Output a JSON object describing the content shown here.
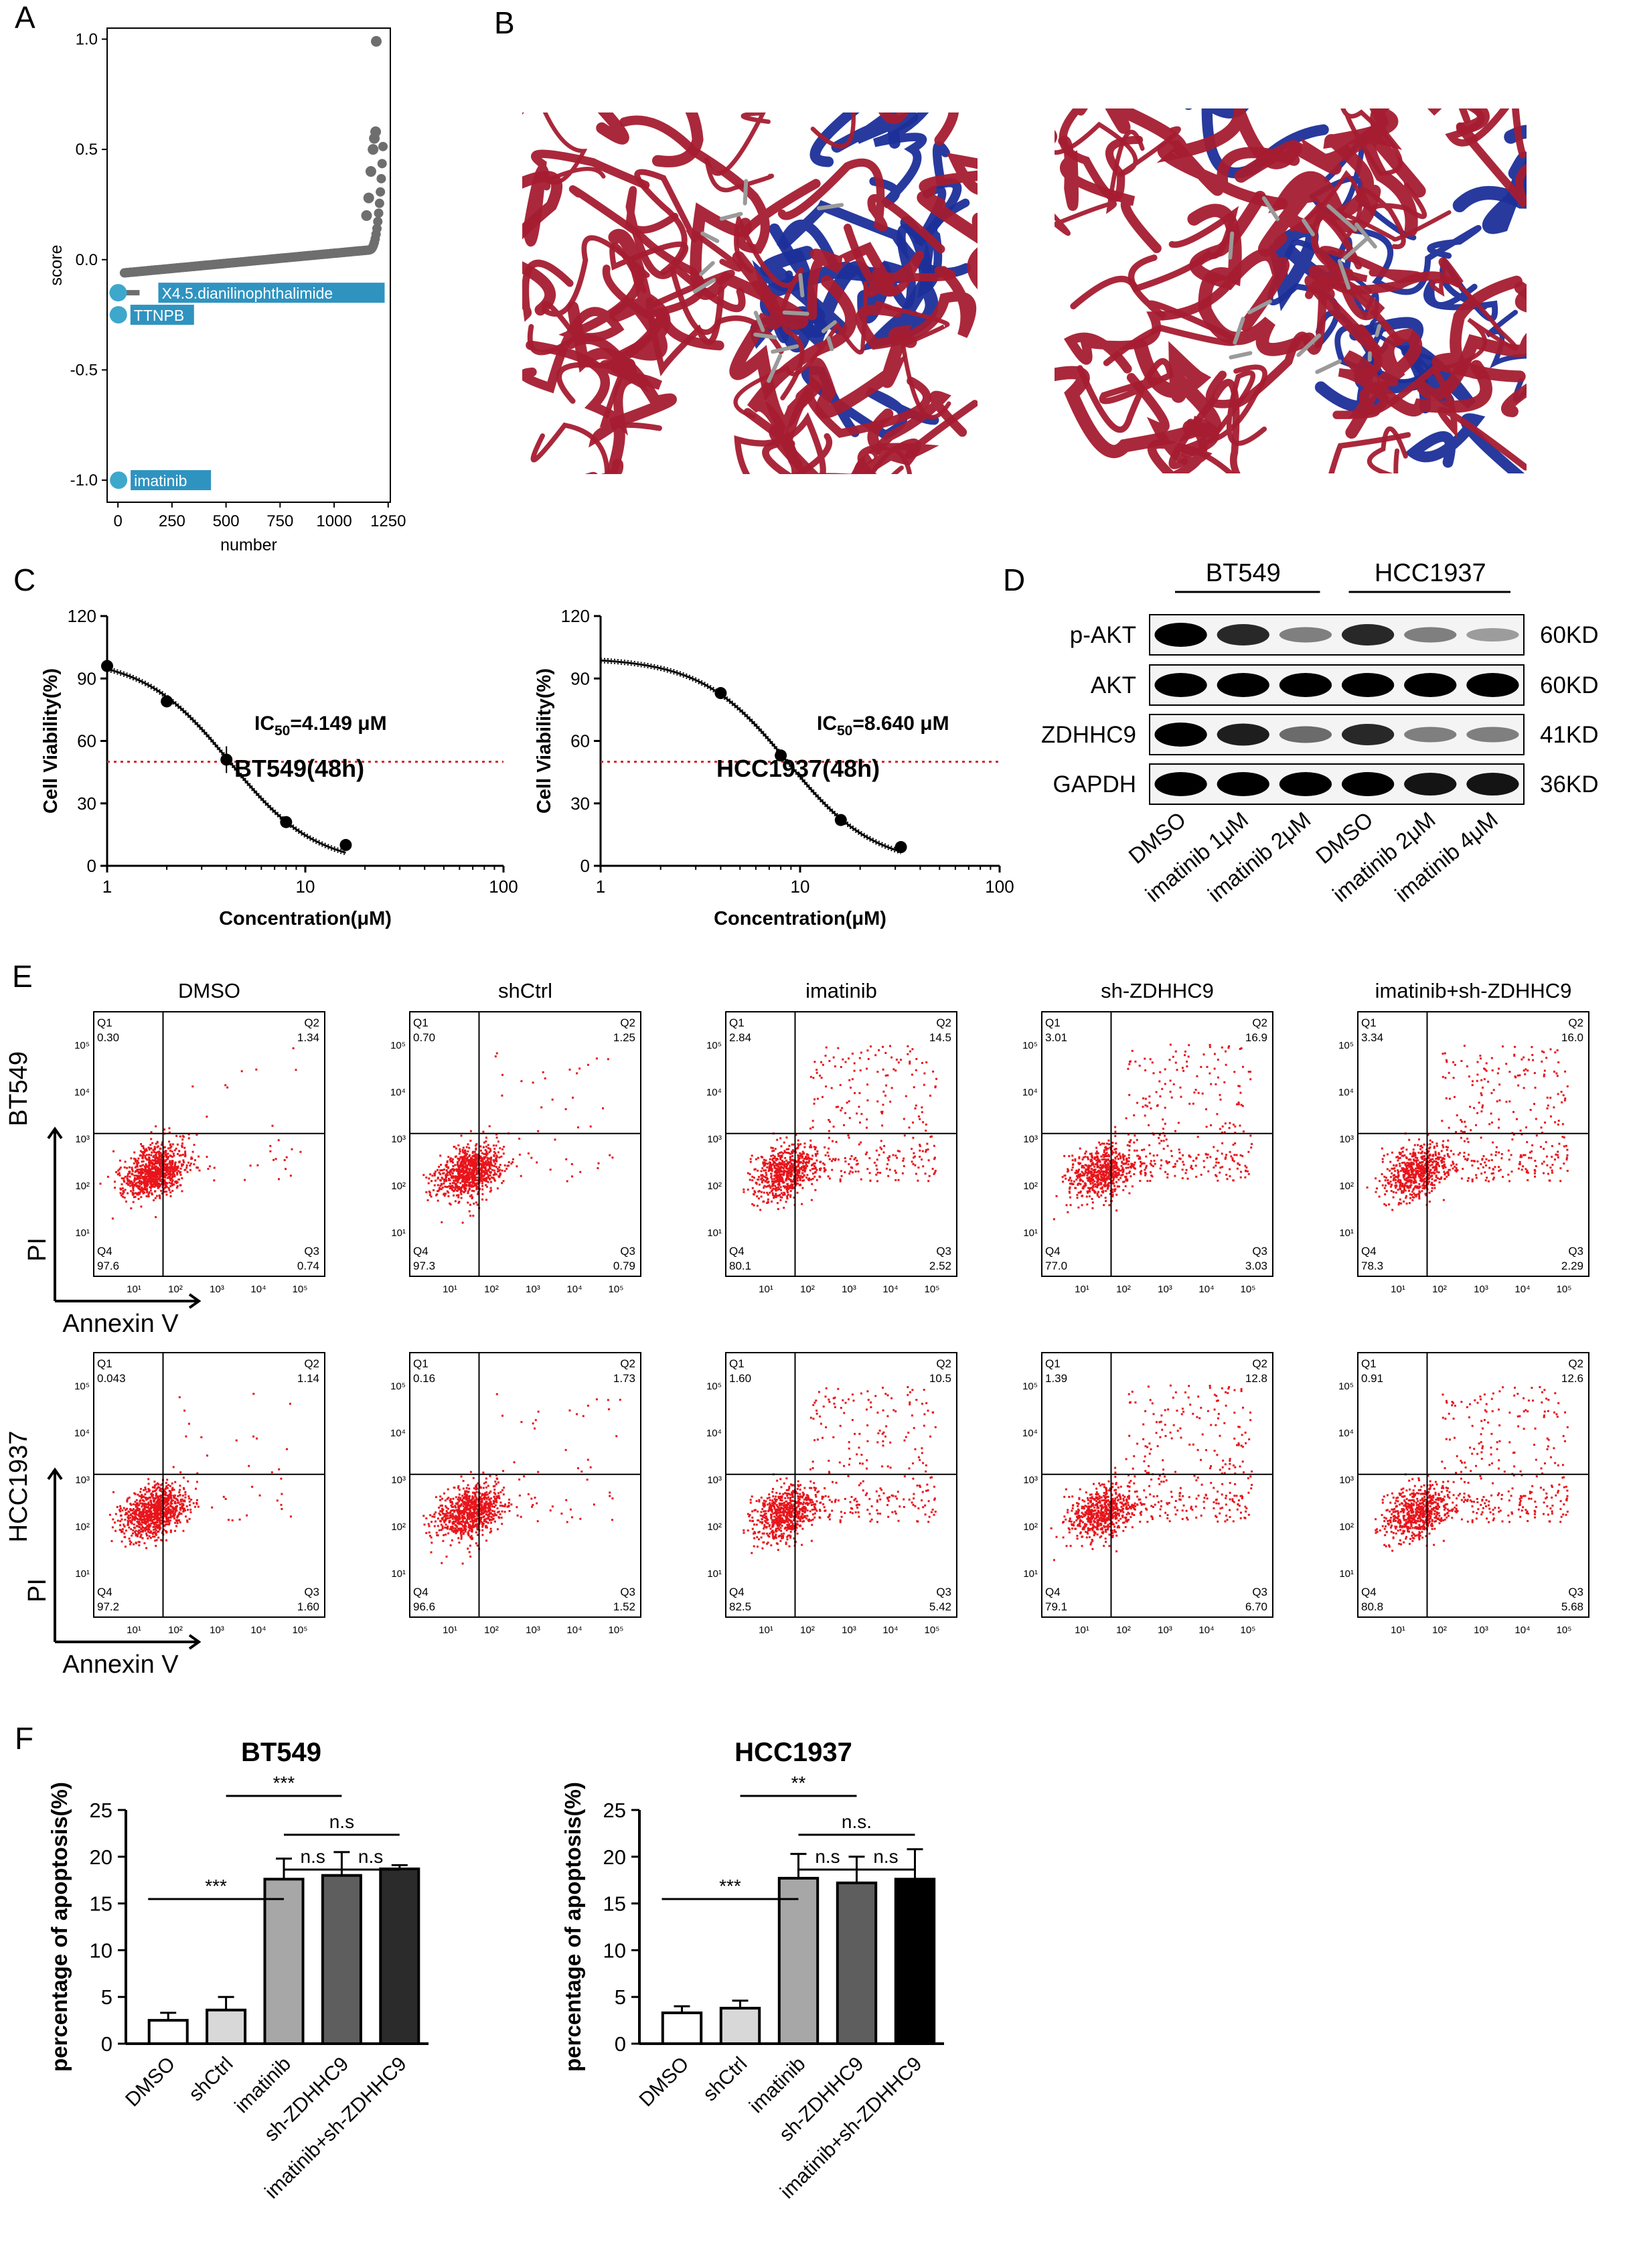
{
  "figure": {
    "panel_labels": [
      "A",
      "B",
      "C",
      "D",
      "E",
      "F"
    ]
  },
  "panel_a": {
    "chart_data": {
      "type": "scatter",
      "xlabel": "number",
      "ylabel": "score",
      "xticks": [
        "0",
        "250",
        "500",
        "750",
        "1000",
        "1250"
      ],
      "yticks": [
        "1.0",
        "0.5",
        "0.0",
        "-0.5",
        "-1.0"
      ],
      "xlim": [
        -50,
        1260
      ],
      "ylim": [
        -1.1,
        1.05
      ],
      "n_points": 1200,
      "highlights": [
        {
          "label": "X4.5.dianilinophthalimide",
          "x": 1,
          "y": -0.15
        },
        {
          "label": "TTNPB",
          "x": 2,
          "y": -0.25
        },
        {
          "label": "imatinib",
          "x": 3,
          "y": -1.0
        }
      ],
      "colors": {
        "points": "#6e6e6e",
        "highlight": "#3da8cc",
        "label_bg": "#2f93c0"
      }
    }
  },
  "panel_b": {
    "description_colors": {
      "helix": "#a51c30",
      "strand": "#1c2f99",
      "ligand": "#9a9a9a"
    }
  },
  "panel_c": {
    "chart_data": [
      {
        "type": "line",
        "title": "BT549(48h)",
        "ic50_label": "IC50=4.149 μM",
        "ic50": 4.149,
        "xlabel": "Concentration(μM)",
        "ylabel": "Cell Viability(%)",
        "x_scale": "log",
        "xlim": [
          1,
          100
        ],
        "ylim": [
          0,
          120
        ],
        "xticks": [
          "1",
          "10",
          "100"
        ],
        "yticks": [
          "0",
          "30",
          "60",
          "90",
          "120"
        ],
        "threshold": 50,
        "points": [
          {
            "x": 1,
            "y": 96
          },
          {
            "x": 2,
            "y": 79
          },
          {
            "x": 4,
            "y": 51
          },
          {
            "x": 8,
            "y": 21
          },
          {
            "x": 16,
            "y": 10
          }
        ]
      },
      {
        "type": "line",
        "title": "HCC1937(48h)",
        "ic50_label": "IC50=8.640 μM",
        "ic50": 8.64,
        "xlabel": "Concentration(μM)",
        "ylabel": "Cell Viability(%)",
        "x_scale": "log",
        "xlim": [
          1,
          100
        ],
        "ylim": [
          0,
          120
        ],
        "xticks": [
          "1",
          "10",
          "100"
        ],
        "yticks": [
          "0",
          "30",
          "60",
          "90",
          "120"
        ],
        "threshold": 50,
        "points": [
          {
            "x": 4,
            "y": 83
          },
          {
            "x": 8,
            "y": 53
          },
          {
            "x": 16,
            "y": 22
          },
          {
            "x": 32,
            "y": 9
          }
        ]
      }
    ]
  },
  "panel_d": {
    "cell_lines": [
      "BT549",
      "HCC1937"
    ],
    "proteins": [
      {
        "name": "p-AKT",
        "size": "60KD",
        "intensity": [
          1.0,
          0.8,
          0.35,
          0.8,
          0.35,
          0.2
        ]
      },
      {
        "name": "AKT",
        "size": "60KD",
        "intensity": [
          1.0,
          1.0,
          1.0,
          1.0,
          1.0,
          1.0
        ]
      },
      {
        "name": "ZDHHC9",
        "size": "41KD",
        "intensity": [
          1.0,
          0.85,
          0.45,
          0.8,
          0.35,
          0.35
        ]
      },
      {
        "name": "GAPDH",
        "size": "36KD",
        "intensity": [
          1.0,
          1.0,
          1.0,
          1.0,
          0.9,
          0.9
        ]
      }
    ],
    "lanes": [
      "DMSO",
      "imatinib 1μM",
      "imatinib 2μM",
      "DMSO",
      "imatinib 2μM",
      "imatinib 4μM"
    ]
  },
  "panel_e": {
    "conditions": [
      "DMSO",
      "shCtrl",
      "imatinib",
      "sh-ZDHHC9",
      "imatinib+sh-ZDHHC9"
    ],
    "row_labels": [
      "BT549",
      "HCC1937"
    ],
    "y_axis_label": "PI",
    "x_axis_label": "Annexin V",
    "tick_labels": [
      "10¹",
      "10²",
      "10³",
      "10⁴",
      "10⁵"
    ],
    "quadrants": [
      [
        {
          "Q1": "0.30",
          "Q2": "1.34",
          "Q3": "0.74",
          "Q4": "97.6"
        },
        {
          "Q1": "0.70",
          "Q2": "1.25",
          "Q3": "0.79",
          "Q4": "97.3"
        },
        {
          "Q1": "2.84",
          "Q2": "14.5",
          "Q3": "2.52",
          "Q4": "80.1"
        },
        {
          "Q1": "3.01",
          "Q2": "16.9",
          "Q3": "3.03",
          "Q4": "77.0"
        },
        {
          "Q1": "3.34",
          "Q2": "16.0",
          "Q3": "2.29",
          "Q4": "78.3"
        }
      ],
      [
        {
          "Q1": "0.043",
          "Q2": "1.14",
          "Q3": "1.60",
          "Q4": "97.2"
        },
        {
          "Q1": "0.16",
          "Q2": "1.73",
          "Q3": "1.52",
          "Q4": "96.6"
        },
        {
          "Q1": "1.60",
          "Q2": "10.5",
          "Q3": "5.42",
          "Q4": "82.5"
        },
        {
          "Q1": "1.39",
          "Q2": "12.8",
          "Q3": "6.70",
          "Q4": "79.1"
        },
        {
          "Q1": "0.91",
          "Q2": "12.6",
          "Q3": "5.68",
          "Q4": "80.8"
        }
      ]
    ]
  },
  "panel_f": {
    "chart_data": [
      {
        "type": "bar",
        "title": "BT549",
        "ylabel": "percentage of apoptosis(%)",
        "categories": [
          "DMSO",
          "shCtrl",
          "imatinib",
          "sh-ZDHHC9",
          "imatinib+sh-ZDHHC9"
        ],
        "values": [
          2.5,
          3.6,
          17.6,
          18.0,
          18.7
        ],
        "errors": [
          0.8,
          1.4,
          2.2,
          2.5,
          0.4
        ],
        "colors": [
          "#ffffff",
          "#d8d8d8",
          "#a7a7a7",
          "#5e5e5e",
          "#2b2b2b"
        ],
        "ylim": [
          0,
          25
        ],
        "yticks": [
          "0",
          "5",
          "10",
          "15",
          "20",
          "25"
        ],
        "significance": [
          {
            "from": 0,
            "to": 2,
            "label": "***"
          },
          {
            "from": 1,
            "to": 3,
            "label": "***"
          },
          {
            "from": 2,
            "to": 3,
            "label": "n.s"
          },
          {
            "from": 3,
            "to": 4,
            "label": "n.s"
          },
          {
            "from": 2,
            "to": 4,
            "label": "n.s"
          }
        ]
      },
      {
        "type": "bar",
        "title": "HCC1937",
        "ylabel": "percentage of apoptosis(%)",
        "categories": [
          "DMSO",
          "shCtrl",
          "imatinib",
          "sh-ZDHHC9",
          "imatinib+sh-ZDHHC9"
        ],
        "values": [
          3.3,
          3.8,
          17.7,
          17.2,
          17.6
        ],
        "errors": [
          0.7,
          0.8,
          2.6,
          2.8,
          3.2
        ],
        "colors": [
          "#ffffff",
          "#d8d8d8",
          "#a7a7a7",
          "#5e5e5e",
          "#000000"
        ],
        "ylim": [
          0,
          25
        ],
        "yticks": [
          "0",
          "5",
          "10",
          "15",
          "20",
          "25"
        ],
        "significance": [
          {
            "from": 0,
            "to": 2,
            "label": "***"
          },
          {
            "from": 1,
            "to": 3,
            "label": "**"
          },
          {
            "from": 2,
            "to": 3,
            "label": "n.s"
          },
          {
            "from": 3,
            "to": 4,
            "label": "n.s"
          },
          {
            "from": 2,
            "to": 4,
            "label": "n.s."
          }
        ]
      }
    ]
  }
}
